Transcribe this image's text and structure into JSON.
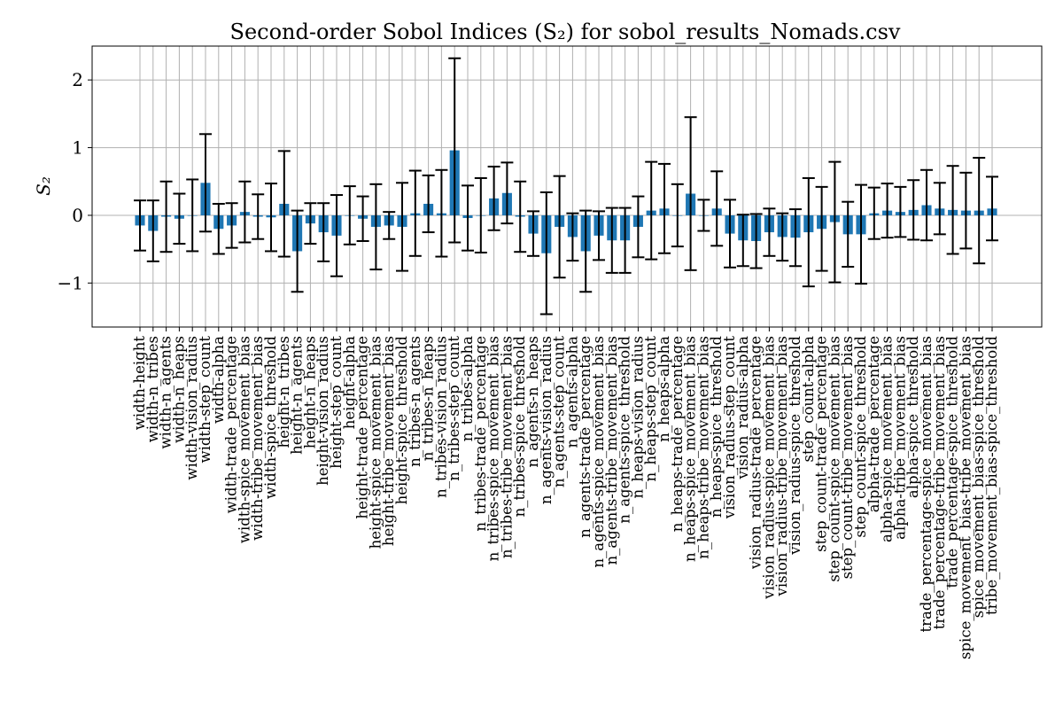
{
  "chart_data": {
    "type": "bar",
    "title": "Second-order Sobol Indices (S₂) for sobol_results_Nomads.csv",
    "xlabel": "",
    "ylabel": "S₂",
    "ylim": [
      -1.65,
      2.5
    ],
    "yticks": [
      -1,
      0,
      1,
      2
    ],
    "ytick_labels": [
      "−1",
      "0",
      "1",
      "2"
    ],
    "grid": true,
    "bar_color": "#1f77b4",
    "error_color": "#000000",
    "categories": [
      "width-height",
      "width-n_tribes",
      "width-n_agents",
      "width-n_heaps",
      "width-vision_radius",
      "width-step_count",
      "width-alpha",
      "width-trade_percentage",
      "width-spice_movement_bias",
      "width-tribe_movement_bias",
      "width-spice_threshold",
      "height-n_tribes",
      "height-n_agents",
      "height-n_heaps",
      "height-vision_radius",
      "height-step_count",
      "height-alpha",
      "height-trade_percentage",
      "height-spice_movement_bias",
      "height-tribe_movement_bias",
      "height-spice_threshold",
      "n_tribes-n_agents",
      "n_tribes-n_heaps",
      "n_tribes-vision_radius",
      "n_tribes-step_count",
      "n_tribes-alpha",
      "n_tribes-trade_percentage",
      "n_tribes-spice_movement_bias",
      "n_tribes-tribe_movement_bias",
      "n_tribes-spice_threshold",
      "n_agents-n_heaps",
      "n_agents-vision_radius",
      "n_agents-step_count",
      "n_agents-alpha",
      "n_agents-trade_percentage",
      "n_agents-spice_movement_bias",
      "n_agents-tribe_movement_bias",
      "n_agents-spice_threshold",
      "n_heaps-vision_radius",
      "n_heaps-step_count",
      "n_heaps-alpha",
      "n_heaps-trade_percentage",
      "n_heaps-spice_movement_bias",
      "n_heaps-tribe_movement_bias",
      "n_heaps-spice_threshold",
      "vision_radius-step_count",
      "vision_radius-alpha",
      "vision_radius-trade_percentage",
      "vision_radius-spice_movement_bias",
      "vision_radius-tribe_movement_bias",
      "vision_radius-spice_threshold",
      "step_count-alpha",
      "step_count-trade_percentage",
      "step_count-spice_movement_bias",
      "step_count-tribe_movement_bias",
      "step_count-spice_threshold",
      "alpha-trade_percentage",
      "alpha-spice_movement_bias",
      "alpha-tribe_movement_bias",
      "alpha-spice_threshold",
      "trade_percentage-spice_movement_bias",
      "trade_percentage-tribe_movement_bias",
      "trade_percentage-spice_threshold",
      "spice_movement_bias-tribe_movement_bias",
      "spice_movement_bias-spice_threshold",
      "tribe_movement_bias-spice_threshold"
    ],
    "values": [
      -0.15,
      -0.23,
      -0.02,
      -0.05,
      0.0,
      0.48,
      -0.2,
      -0.15,
      0.05,
      -0.02,
      -0.03,
      0.17,
      -0.53,
      -0.12,
      -0.25,
      -0.3,
      0.0,
      -0.05,
      -0.17,
      -0.15,
      -0.17,
      0.03,
      0.17,
      0.03,
      0.96,
      -0.04,
      0.0,
      0.25,
      0.33,
      -0.02,
      -0.27,
      -0.56,
      -0.17,
      -0.32,
      -0.53,
      -0.3,
      -0.37,
      -0.37,
      -0.17,
      0.07,
      0.1,
      0.0,
      0.32,
      0.0,
      0.1,
      -0.27,
      -0.37,
      -0.38,
      -0.25,
      -0.32,
      -0.33,
      -0.25,
      -0.2,
      -0.1,
      -0.28,
      -0.28,
      0.03,
      0.07,
      0.05,
      0.08,
      0.15,
      0.1,
      0.08,
      0.07,
      0.07,
      0.1
    ],
    "errors": [
      0.37,
      0.45,
      0.52,
      0.37,
      0.53,
      0.72,
      0.37,
      0.33,
      0.45,
      0.33,
      0.5,
      0.78,
      0.6,
      0.3,
      0.43,
      0.6,
      0.43,
      0.33,
      0.63,
      0.2,
      0.65,
      0.63,
      0.42,
      0.64,
      1.36,
      0.48,
      0.55,
      0.47,
      0.45,
      0.52,
      0.33,
      0.9,
      0.75,
      0.35,
      0.6,
      0.36,
      0.48,
      0.48,
      0.45,
      0.72,
      0.66,
      0.46,
      1.13,
      0.23,
      0.55,
      0.5,
      0.38,
      0.4,
      0.35,
      0.35,
      0.42,
      0.8,
      0.62,
      0.89,
      0.48,
      0.73,
      0.38,
      0.4,
      0.37,
      0.44,
      0.52,
      0.38,
      0.65,
      0.56,
      0.78,
      0.47
    ]
  }
}
